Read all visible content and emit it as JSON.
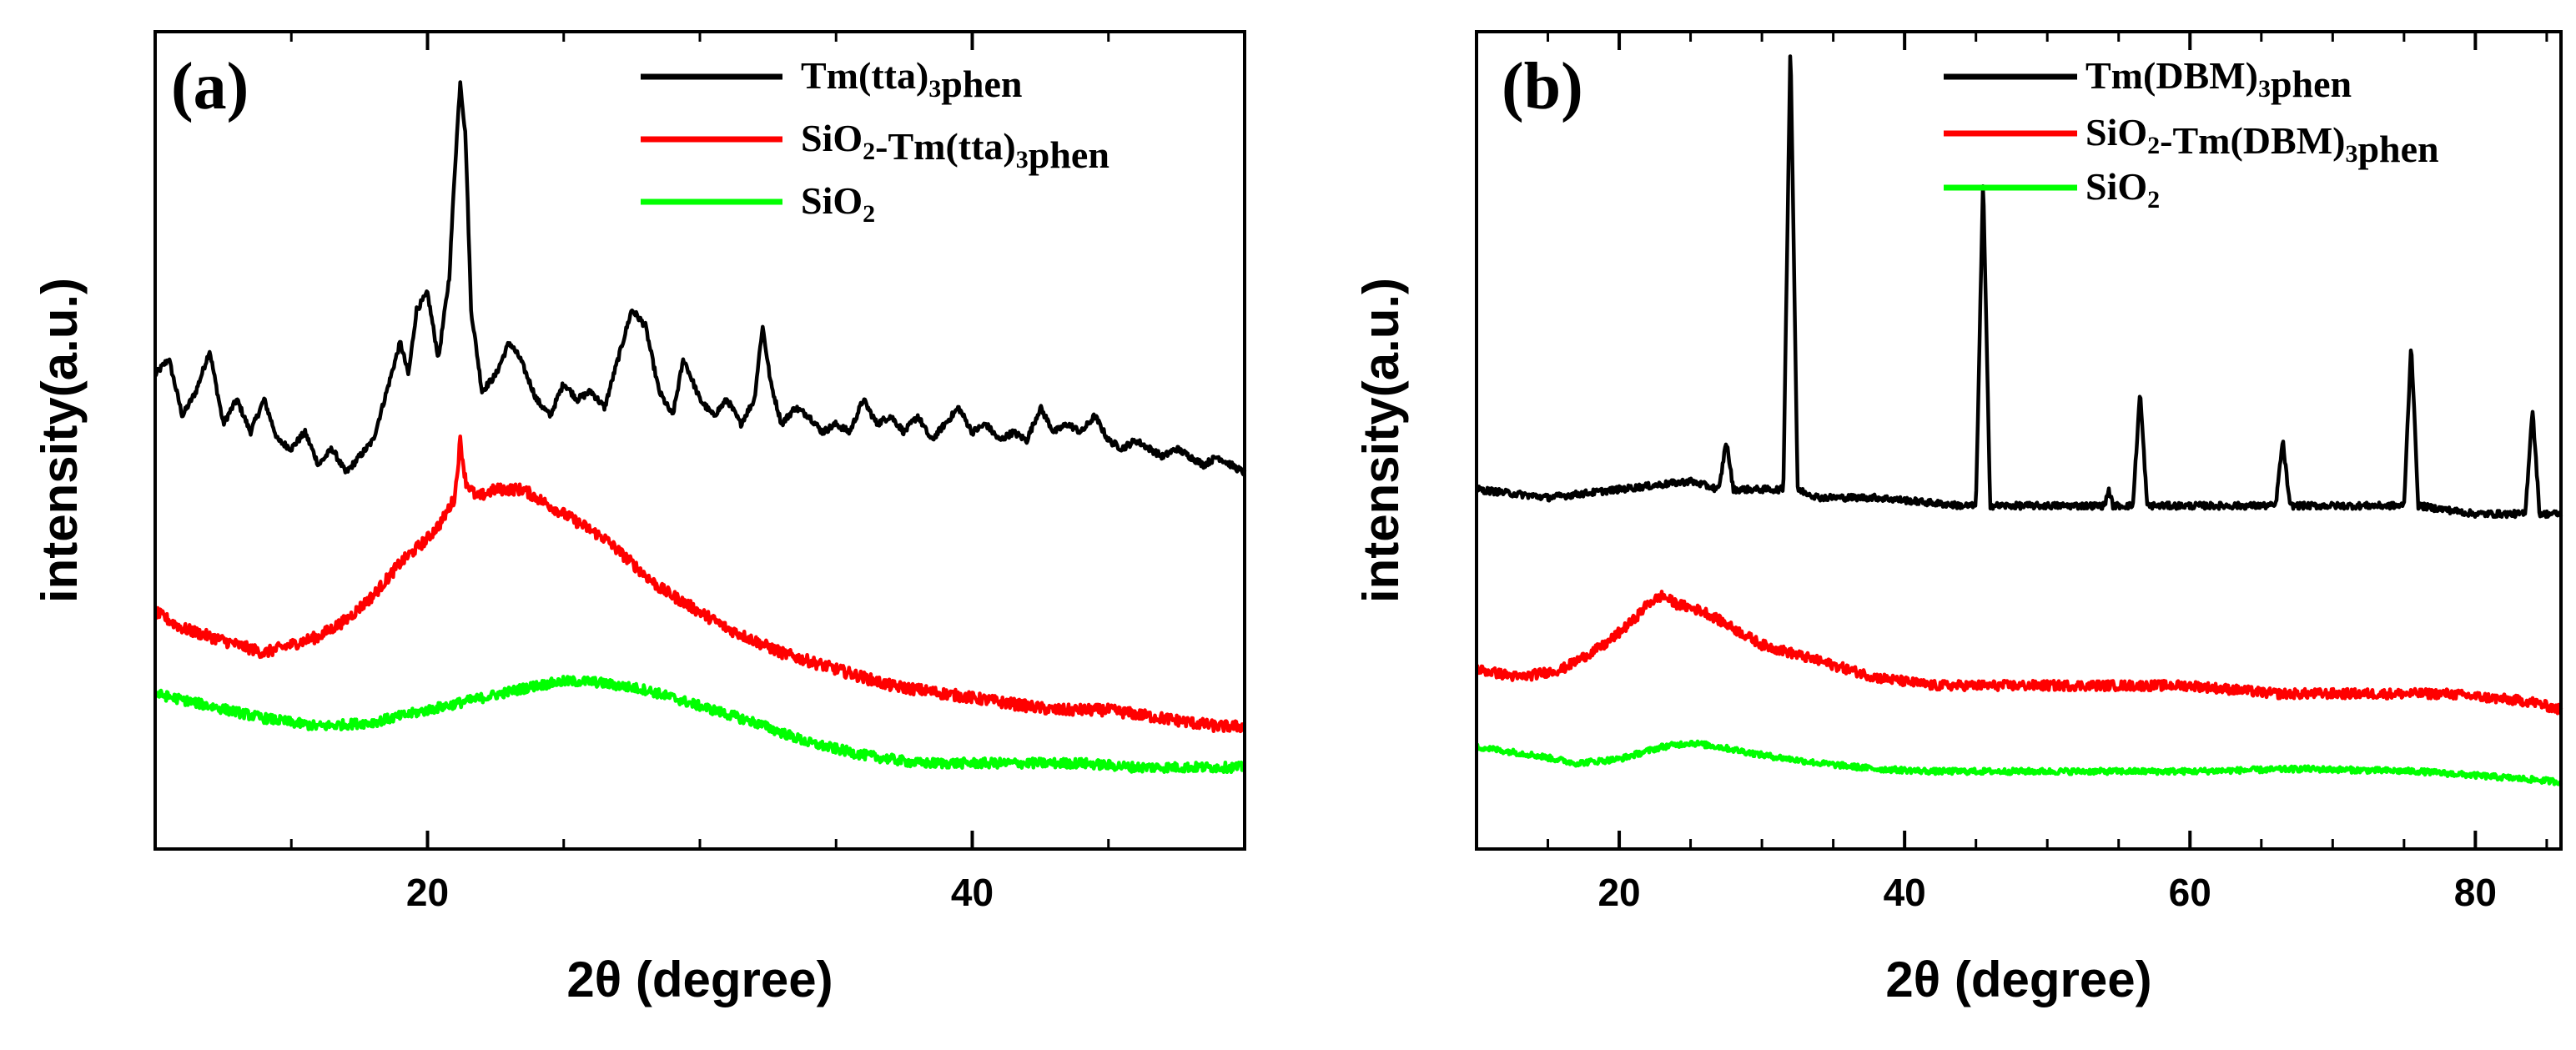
{
  "chart_data": [
    {
      "type": "line",
      "panel_label": "(a)",
      "xlabel": "2θ (degree)",
      "ylabel": "intensity(a.u.)",
      "xlim": [
        10,
        50
      ],
      "ylim": [
        0,
        100
      ],
      "x_ticks": [
        20,
        40
      ],
      "y_ticks_labeled": false,
      "legend_position": "top-right",
      "series": [
        {
          "name": "Tm(tta)3phen",
          "legend_main": "Tm(tta)",
          "legend_sub": "3",
          "legend_suffix": "phen",
          "color": "#000000",
          "noise": 0.4,
          "x": [
            10,
            10.5,
            11,
            11.5,
            12,
            12.5,
            13,
            13.5,
            14,
            14.5,
            15,
            15.5,
            16,
            16.5,
            17,
            17.5,
            18,
            18.5,
            19,
            19.3,
            19.6,
            20,
            20.4,
            20.8,
            21.0,
            21.2,
            21.4,
            21.6,
            22,
            22.5,
            23,
            23.4,
            24,
            24.5,
            25,
            25.5,
            26,
            26.5,
            27,
            27.5,
            28,
            28.5,
            29,
            29.4,
            30,
            30.5,
            31,
            31.5,
            32,
            32.3,
            32.6,
            33,
            33.5,
            34,
            34.5,
            35,
            35.5,
            36,
            36.5,
            37,
            37.5,
            38,
            38.5,
            39,
            39.5,
            40,
            40.5,
            41,
            41.5,
            42,
            42.5,
            43,
            43.5,
            44,
            44.5,
            45,
            45.5,
            46,
            46.5,
            47,
            47.5,
            48,
            48.5,
            49,
            49.5,
            50
          ],
          "y": [
            58,
            60,
            53,
            56,
            61,
            52,
            55,
            51,
            55,
            50,
            49,
            51,
            47,
            49,
            46,
            48,
            50,
            56,
            62,
            58,
            66,
            68,
            60,
            70,
            83,
            94,
            87,
            66,
            56,
            58,
            62,
            60,
            55,
            53,
            57,
            55,
            56,
            54,
            60,
            66,
            64,
            56,
            53,
            60,
            55,
            53,
            55,
            52,
            55,
            64,
            57,
            52,
            54,
            53,
            51,
            52,
            51,
            55,
            52,
            53,
            51,
            53,
            50,
            52,
            54,
            51,
            52,
            50,
            51,
            50,
            54,
            51,
            52,
            51,
            53,
            50,
            49,
            50,
            49,
            48,
            49,
            48,
            47,
            48,
            47,
            46
          ]
        },
        {
          "name": "SiO2-Tm(tta)3phen",
          "legend_main": "SiO",
          "legend_sub": "2",
          "legend_mid": "-Tm(tta)",
          "legend_sub2": "3",
          "legend_suffix": "phen",
          "color": "#ff0000",
          "noise": 0.7,
          "x": [
            10,
            11,
            12,
            13,
            14,
            15,
            16,
            17,
            18,
            19,
            20,
            20.5,
            21.0,
            21.2,
            21.4,
            21.8,
            22.5,
            23.5,
            24.5,
            25.5,
            26.5,
            27.5,
            28.5,
            29.5,
            31,
            33,
            35,
            37,
            39,
            41,
            43,
            45,
            47,
            49,
            50
          ],
          "y": [
            29,
            27,
            26,
            25,
            24,
            25,
            26,
            28,
            31,
            35,
            38,
            40,
            43,
            50,
            45,
            43,
            44,
            44,
            42,
            40,
            38,
            35,
            32,
            30,
            27,
            24,
            22,
            20,
            19,
            18,
            17,
            17,
            16,
            15,
            15
          ]
        },
        {
          "name": "SiO2",
          "legend_main": "SiO",
          "legend_sub": "2",
          "legend_suffix": "",
          "color": "#00ff00",
          "noise": 0.6,
          "x": [
            10,
            12,
            14,
            16,
            18,
            20,
            22,
            24,
            25,
            26,
            28,
            30,
            32,
            34,
            36,
            38,
            40,
            42,
            44,
            46,
            48,
            50
          ],
          "y": [
            19,
            17.5,
            16,
            15,
            15.5,
            17,
            18.5,
            20,
            20.5,
            20.5,
            19.5,
            17.5,
            15.5,
            13,
            11.5,
            10.5,
            10.5,
            10.5,
            10.5,
            10,
            10,
            10
          ]
        }
      ]
    },
    {
      "type": "line",
      "panel_label": "(b)",
      "xlabel": "2θ (degree)",
      "ylabel": "intensity(a.u.)",
      "xlim": [
        10,
        86
      ],
      "ylim": [
        0,
        100
      ],
      "x_ticks": [
        20,
        40,
        60,
        80
      ],
      "y_ticks_labeled": false,
      "legend_position": "top-right",
      "series": [
        {
          "name": "Tm(DBM)3phen",
          "legend_main": "Tm(DBM)",
          "legend_sub": "3",
          "legend_suffix": "phen",
          "color": "#000000",
          "noise": 0.4,
          "x": [
            10,
            15,
            20,
            25,
            27,
            27.5,
            28,
            30,
            31.5,
            32,
            32.5,
            34,
            38,
            44,
            45,
            45.5,
            46,
            47,
            50,
            54,
            54.3,
            54.6,
            56,
            56.5,
            57,
            60,
            66,
            66.5,
            67,
            70,
            74,
            75,
            75.5,
            76,
            80,
            83,
            83.5,
            84,
            84.5,
            86
          ],
          "y": [
            44,
            43,
            44,
            45,
            44,
            50,
            44,
            44,
            44,
            99,
            44,
            43,
            43,
            42,
            42,
            82,
            42,
            42,
            42,
            42,
            44,
            42,
            42,
            56,
            42,
            42,
            42,
            50,
            42,
            42,
            42,
            42,
            62,
            42,
            41,
            41,
            41,
            54,
            41,
            41
          ]
        },
        {
          "name": "SiO2-Tm(DBM)3phen",
          "legend_main": "SiO",
          "legend_sub": "2",
          "legend_mid": "-Tm(DBM)",
          "legend_sub2": "3",
          "legend_suffix": "phen",
          "color": "#ff0000",
          "noise": 0.6,
          "x": [
            10,
            13,
            16,
            19,
            21,
            22,
            23,
            24,
            26,
            28,
            30,
            34,
            38,
            42,
            46,
            50,
            55,
            60,
            66,
            72,
            78,
            84,
            86
          ],
          "y": [
            22,
            21,
            22,
            25,
            28,
            30,
            31,
            30,
            29,
            27,
            25,
            23,
            21,
            20,
            20,
            20,
            20,
            20,
            19,
            19,
            19,
            18,
            17
          ]
        },
        {
          "name": "SiO2",
          "legend_main": "SiO",
          "legend_sub": "2",
          "legend_suffix": "",
          "color": "#00ff00",
          "noise": 0.35,
          "x": [
            10,
            14,
            17,
            20,
            23,
            25,
            27,
            30,
            34,
            38,
            42,
            50,
            60,
            68,
            76,
            84,
            86
          ],
          "y": [
            12.5,
            11.5,
            10.5,
            11,
            12.5,
            13,
            12.5,
            11.5,
            10.5,
            9.8,
            9.5,
            9.5,
            9.5,
            9.8,
            9.5,
            8.5,
            8.2
          ]
        }
      ]
    }
  ]
}
